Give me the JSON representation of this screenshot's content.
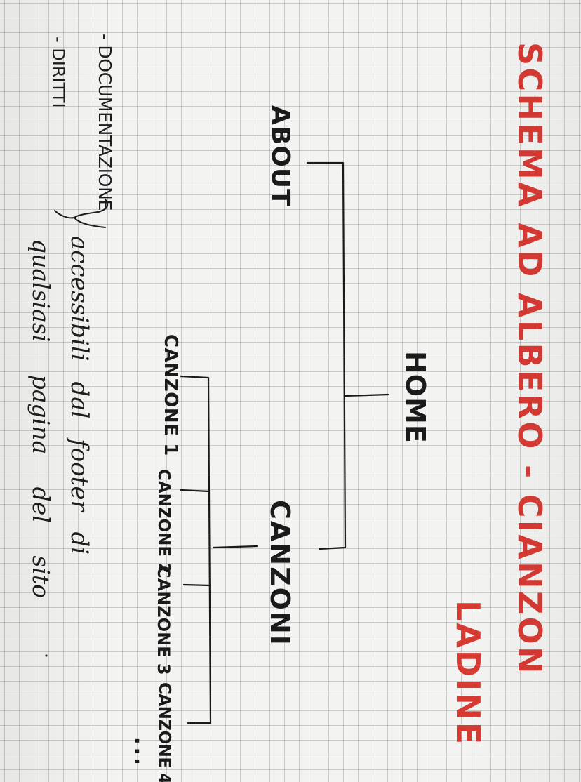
{
  "title": {
    "line1": "SCHEMA AD ALBERO - CIANZON",
    "line2": "LADINE"
  },
  "tree": {
    "about": "ABOUT",
    "home": "HOME",
    "canzoni": "CANZONI",
    "songs": [
      "CANZONE 1",
      "CANZONE 2",
      "CANZONE 3",
      "CANZONE 4"
    ],
    "more": "..."
  },
  "notes": {
    "item1": "- DOCUMENTAZIONE",
    "item2": "- DIRITTI",
    "line1": "accessibili dal footer di",
    "line2": "qualsiasi pagina del sito"
  },
  "colors": {
    "title": "#d63a33",
    "ink": "#1a1a1a",
    "grid": "#9a9a9a",
    "paper": "#f3f3f1"
  }
}
